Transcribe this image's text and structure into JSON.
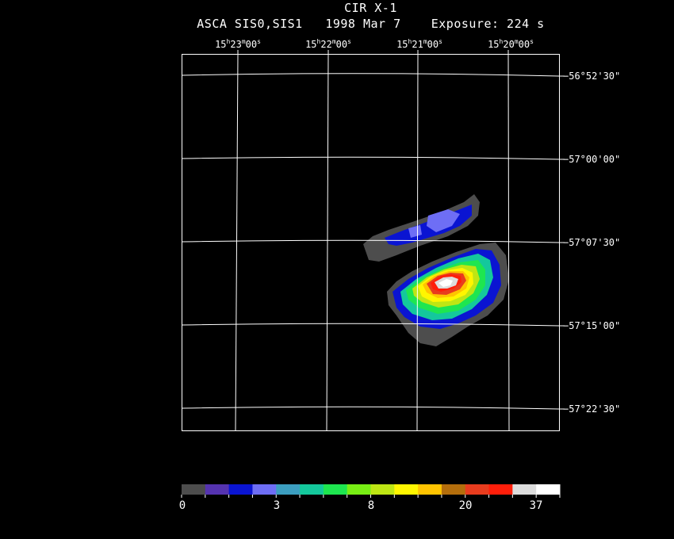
{
  "header": {
    "title": "CIR X-1",
    "instrument": "ASCA SIS0,SIS1",
    "date": "1998 Mar  7",
    "exposure": "Exposure: 224 s"
  },
  "ra_ticks": [
    {
      "h": "15",
      "m": "23",
      "s": "00"
    },
    {
      "h": "15",
      "m": "22",
      "s": "00"
    },
    {
      "h": "15",
      "m": "21",
      "s": "00"
    },
    {
      "h": "15",
      "m": "20",
      "s": "00"
    }
  ],
  "dec_ticks": [
    "−56°52'30\"",
    "−57°00'00\"",
    "−57°07'30\"",
    "−57°15'00\"",
    "−57°22'30\""
  ],
  "colorbar": {
    "colors": [
      "#4d4d4d",
      "#5533b0",
      "#0a14d2",
      "#6e6ef5",
      "#3c9ec0",
      "#14c89c",
      "#1ee650",
      "#78ee14",
      "#bee614",
      "#fff600",
      "#ffc400",
      "#b46e0c",
      "#e83c1e",
      "#ff1e0a",
      "#dcdcdc",
      "#ffffff"
    ],
    "labels": [
      "0",
      "3",
      "8",
      "20",
      "37"
    ]
  }
}
